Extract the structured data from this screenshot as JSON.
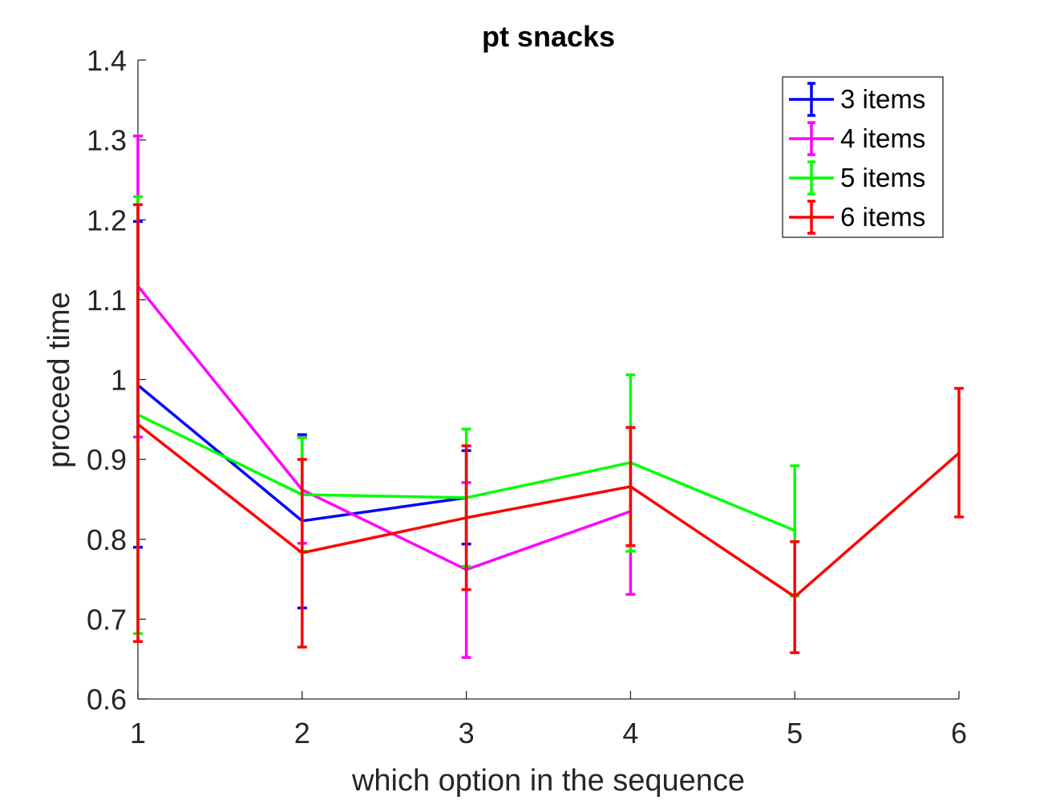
{
  "chart_data": {
    "type": "line",
    "title": "pt snacks",
    "xlabel": "which option in the sequence",
    "ylabel": "proceed time",
    "xlim": [
      1,
      6
    ],
    "ylim": [
      0.6,
      1.4
    ],
    "x_ticks": [
      "1",
      "2",
      "3",
      "4",
      "5",
      "6"
    ],
    "y_ticks": [
      "0.6",
      "0.7",
      "0.8",
      "0.9",
      "1",
      "1.1",
      "1.2",
      "1.3",
      "1.4"
    ],
    "grid": false,
    "legend_position": "top-right",
    "series": [
      {
        "name": "3 items",
        "color": "#0000ff",
        "x": [
          1,
          2,
          3
        ],
        "y": [
          0.993,
          0.823,
          0.852
        ],
        "err_low": [
          0.79,
          0.714,
          0.794
        ],
        "err_high": [
          1.198,
          0.931,
          0.911
        ]
      },
      {
        "name": "4 items",
        "color": "#ff00ff",
        "x": [
          1,
          2,
          3,
          4
        ],
        "y": [
          1.117,
          0.862,
          0.762,
          0.835
        ],
        "err_low": [
          0.928,
          0.795,
          0.652,
          0.731
        ],
        "err_high": [
          1.305,
          0.928,
          0.871,
          0.94
        ]
      },
      {
        "name": "5 items",
        "color": "#00ff00",
        "x": [
          1,
          2,
          3,
          4,
          5
        ],
        "y": [
          0.956,
          0.856,
          0.852,
          0.896,
          0.811
        ],
        "err_low": [
          0.682,
          0.785,
          0.766,
          0.785,
          0.729
        ],
        "err_high": [
          1.229,
          0.927,
          0.938,
          1.006,
          0.892
        ]
      },
      {
        "name": "6 items",
        "color": "#ff0000",
        "x": [
          1,
          2,
          3,
          4,
          5,
          6
        ],
        "y": [
          0.944,
          0.783,
          0.827,
          0.866,
          0.728,
          0.908
        ],
        "err_low": [
          0.672,
          0.665,
          0.737,
          0.792,
          0.658,
          0.828
        ],
        "err_high": [
          1.219,
          0.9,
          0.917,
          0.94,
          0.797,
          0.989
        ]
      }
    ]
  }
}
